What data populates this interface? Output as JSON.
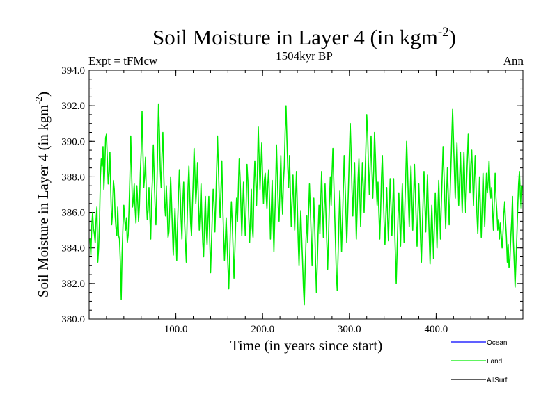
{
  "chart_data": {
    "type": "line",
    "title_main": "Soil Moisture in Layer 4 (in kgm",
    "title_sup": "-2",
    "title_close": ")",
    "subtitle": "1504kyr BP",
    "left_label": "Expt = tFMcw",
    "right_label": "Ann",
    "xlabel": "Time (in years since start)",
    "ylabel_main": "Soil Moisture in Layer 4 (in kgm",
    "ylabel_sup": "-2",
    "ylabel_close": ")",
    "xlim": [
      0,
      500
    ],
    "ylim": [
      380,
      394
    ],
    "xticks": [
      {
        "value": 100,
        "label": "100.0"
      },
      {
        "value": 200,
        "label": "200.0"
      },
      {
        "value": 300,
        "label": "300.0"
      },
      {
        "value": 400,
        "label": "400.0"
      }
    ],
    "yticks": [
      {
        "value": 380,
        "label": "380.0"
      },
      {
        "value": 382,
        "label": "382.0"
      },
      {
        "value": 384,
        "label": "384.0"
      },
      {
        "value": 386,
        "label": "386.0"
      },
      {
        "value": 388,
        "label": "388.0"
      },
      {
        "value": 390,
        "label": "390.0"
      },
      {
        "value": 392,
        "label": "392.0"
      },
      {
        "value": 394,
        "label": "394.0"
      }
    ],
    "legend": [
      {
        "name": "Ocean",
        "color": "#0000ff"
      },
      {
        "name": "Land",
        "color": "#00ee00"
      },
      {
        "name": "AllSurf",
        "color": "#000000"
      }
    ],
    "series": [
      {
        "name": "Land",
        "color": "#00ee00",
        "x_start": 1,
        "x_step": 1,
        "values": [
          384.5,
          383.6,
          385.2,
          386.0,
          385.1,
          384.8,
          384.3,
          385.6,
          386.3,
          383.2,
          384.0,
          385.5,
          388.0,
          389.0,
          388.6,
          389.7,
          387.3,
          388.4,
          390.2,
          390.4,
          389.0,
          387.6,
          388.2,
          389.4,
          387.1,
          385.3,
          386.0,
          387.8,
          387.3,
          385.8,
          385.1,
          384.7,
          386.3,
          384.7,
          384.5,
          383.2,
          381.1,
          383.7,
          385.2,
          386.4,
          385.6,
          385.0,
          385.7,
          384.3,
          384.7,
          386.2,
          388.0,
          390.3,
          388.2,
          386.3,
          386.7,
          387.6,
          386.2,
          385.4,
          387.5,
          386.6,
          385.5,
          386.4,
          388.2,
          389.4,
          391.7,
          389.5,
          387.4,
          388.0,
          389.1,
          386.8,
          385.6,
          386.1,
          387.4,
          385.8,
          384.5,
          386.7,
          387.9,
          389.8,
          388.0,
          386.4,
          385.3,
          387.2,
          389.6,
          392.1,
          390.6,
          388.4,
          387.4,
          389.3,
          390.5,
          388.2,
          386.5,
          385.8,
          387.5,
          386.2,
          384.6,
          384.9,
          386.2,
          388.0,
          386.6,
          385.1,
          383.6,
          385.0,
          386.2,
          384.8,
          383.3,
          385.4,
          386.9,
          388.4,
          387.1,
          385.6,
          384.5,
          386.6,
          387.7,
          385.5,
          384.3,
          383.2,
          385.6,
          387.4,
          388.6,
          387.0,
          385.4,
          384.7,
          386.3,
          387.8,
          389.6,
          388.1,
          386.5,
          387.4,
          388.8,
          386.6,
          385.0,
          386.0,
          387.6,
          385.7,
          384.3,
          383.5,
          385.4,
          386.9,
          385.1,
          384.2,
          385.6,
          386.9,
          384.5,
          382.6,
          384.2,
          385.8,
          387.3,
          386.6,
          384.9,
          386.5,
          388.4,
          390.3,
          388.6,
          386.9,
          385.7,
          387.3,
          388.9,
          386.5,
          384.8,
          383.3,
          384.4,
          385.7,
          384.3,
          383.0,
          381.7,
          383.5,
          385.3,
          386.6,
          385.4,
          383.9,
          382.3,
          383.8,
          385.6,
          386.8,
          385.5,
          387.2,
          389.0,
          388.0,
          386.3,
          384.7,
          386.2,
          387.7,
          386.0,
          384.7,
          386.4,
          388.7,
          387.8,
          385.8,
          384.3,
          385.7,
          387.3,
          385.2,
          384.6,
          387.4,
          388.9,
          387.8,
          386.4,
          388.3,
          390.8,
          389.0,
          387.3,
          388.6,
          389.9,
          387.9,
          386.5,
          387.8,
          388.2,
          387.0,
          386.2,
          387.6,
          388.4,
          386.6,
          384.5,
          386.1,
          387.8,
          385.5,
          383.8,
          385.6,
          387.4,
          389.8,
          388.0,
          386.3,
          385.5,
          387.4,
          389.2,
          387.1,
          385.9,
          387.7,
          388.6,
          390.6,
          392.0,
          390.1,
          388.5,
          387.4,
          389.2,
          387.1,
          385.2,
          386.6,
          388.1,
          386.4,
          385.0,
          386.8,
          388.3,
          386.4,
          384.4,
          383.0,
          384.6,
          386.1,
          384.6,
          383.3,
          381.8,
          380.8,
          382.7,
          384.4,
          385.8,
          384.3,
          386.0,
          387.6,
          386.2,
          384.6,
          383.0,
          385.0,
          386.8,
          385.3,
          383.2,
          381.5,
          383.0,
          384.9,
          386.4,
          384.8,
          386.6,
          388.3,
          386.5,
          384.6,
          386.2,
          387.6,
          385.9,
          384.3,
          382.8,
          384.6,
          386.6,
          388.0,
          386.4,
          388.2,
          389.6,
          387.8,
          386.0,
          384.3,
          382.5,
          381.6,
          383.6,
          385.5,
          387.2,
          385.5,
          383.8,
          385.4,
          387.3,
          389.2,
          387.6,
          386.0,
          384.3,
          385.8,
          387.5,
          389.3,
          391.0,
          389.4,
          387.3,
          385.8,
          387.4,
          388.8,
          386.6,
          384.5,
          386.1,
          387.9,
          389.0,
          387.0,
          385.2,
          387.1,
          388.8,
          387.5,
          386.0,
          387.9,
          389.6,
          391.5,
          390.5,
          388.6,
          387.0,
          388.7,
          390.3,
          388.4,
          386.8,
          388.3,
          390.5,
          389.2,
          387.5,
          386.4,
          387.7,
          386.0,
          384.5,
          386.1,
          388.0,
          389.2,
          387.3,
          385.5,
          384.2,
          385.7,
          387.4,
          385.8,
          384.4,
          386.2,
          387.9,
          386.3,
          384.7,
          386.4,
          387.9,
          385.5,
          383.7,
          382.0,
          383.8,
          385.6,
          387.1,
          385.6,
          384.1,
          386.0,
          387.6,
          385.8,
          384.3,
          386.4,
          388.1,
          390.0,
          388.5,
          386.7,
          385.2,
          387.0,
          388.6,
          386.9,
          385.0,
          386.7,
          388.7,
          387.1,
          385.6,
          384.1,
          385.9,
          387.6,
          386.1,
          384.5,
          383.2,
          385.0,
          386.7,
          388.3,
          386.5,
          384.9,
          386.6,
          388.1,
          386.3,
          384.7,
          383.1,
          384.8,
          386.4,
          384.9,
          383.4,
          385.3,
          387.1,
          385.6,
          384.0,
          386.0,
          387.8,
          386.2,
          384.5,
          386.5,
          388.1,
          389.7,
          388.2,
          386.6,
          385.1,
          386.9,
          388.5,
          387.0,
          385.3,
          386.9,
          388.5,
          390.2,
          391.8,
          390.1,
          388.4,
          386.8,
          388.4,
          389.9,
          388.2,
          386.4,
          387.8,
          389.4,
          387.6,
          386.0,
          387.7,
          389.4,
          387.6,
          386.0,
          387.5,
          389.0,
          390.4,
          388.7,
          387.1,
          388.7,
          389.5,
          388.0,
          386.4,
          387.9,
          389.2,
          387.3,
          385.9,
          384.8,
          386.4,
          388.0,
          386.3,
          384.6,
          386.3,
          388.2,
          386.6,
          385.2,
          386.8,
          388.2,
          387.1,
          387.8,
          388.9,
          387.5,
          386.8,
          387.4,
          386.1,
          385.0,
          386.6,
          388.2,
          386.8,
          386.0,
          385.0,
          385.6,
          384.5,
          385.4,
          384.7,
          384.0,
          384.8,
          385.9,
          386.6,
          385.5,
          384.6,
          383.2,
          384.2,
          382.9,
          383.3,
          384.6,
          385.5,
          386.9,
          384.4,
          383.2,
          381.8,
          383.2,
          384.6,
          386.2,
          387.6,
          388.3,
          387.0,
          386.2,
          387.5
        ]
      }
    ]
  }
}
